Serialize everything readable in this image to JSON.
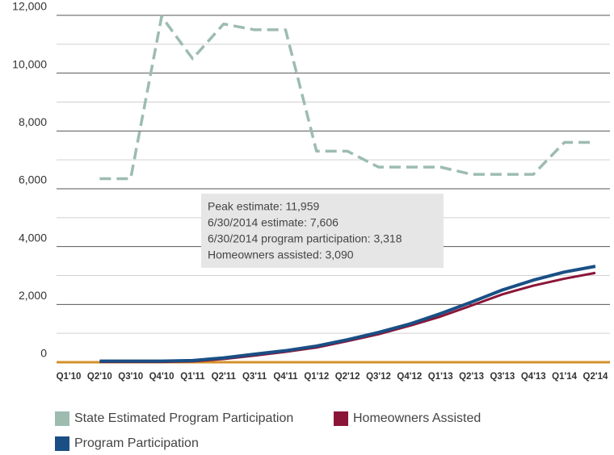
{
  "chart_data": {
    "type": "line",
    "categories": [
      "Q1'10",
      "Q2'10",
      "Q3'10",
      "Q4'10",
      "Q1'11",
      "Q2'11",
      "Q3'11",
      "Q4'11",
      "Q1'12",
      "Q2'12",
      "Q3'12",
      "Q4'12",
      "Q1'13",
      "Q2'13",
      "Q3'13",
      "Q4'13",
      "Q1'14",
      "Q2'14"
    ],
    "series": [
      {
        "name": "State Estimated Program Participation",
        "color": "#9dbcaf",
        "dashed": true,
        "values": [
          null,
          6350,
          6350,
          11959,
          10500,
          11700,
          11500,
          11500,
          7300,
          7300,
          6750,
          6750,
          6750,
          6500,
          6500,
          6500,
          7606,
          7606
        ]
      },
      {
        "name": "Homeowners Assisted",
        "color": "#8b1538",
        "dashed": false,
        "values": [
          null,
          10,
          10,
          10,
          30,
          110,
          230,
          360,
          510,
          730,
          970,
          1260,
          1580,
          1960,
          2350,
          2650,
          2890,
          3090
        ]
      },
      {
        "name": "Program Participation",
        "color": "#1a4f85",
        "dashed": false,
        "values": [
          null,
          40,
          40,
          40,
          60,
          150,
          280,
          400,
          560,
          780,
          1030,
          1320,
          1680,
          2080,
          2500,
          2840,
          3120,
          3318
        ]
      }
    ],
    "ylim": [
      0,
      12000
    ],
    "yticks": [
      {
        "value": 0,
        "label": "0"
      },
      {
        "value": 2000,
        "label": "2,000"
      },
      {
        "value": 4000,
        "label": "4,000"
      },
      {
        "value": 6000,
        "label": "6,000"
      },
      {
        "value": 8000,
        "label": "8,000"
      },
      {
        "value": 10000,
        "label": "10,000"
      },
      {
        "value": 12000,
        "label": "12,000"
      }
    ],
    "minor_yticks": [
      1000,
      3000,
      5000,
      7000,
      9000,
      11000
    ],
    "grid": true,
    "zero_line_color": "#d4902a",
    "annotation": [
      "Peak estimate: 11,959",
      "6/30/2014 estimate: 7,606",
      "6/30/2014 program participation: 3,318",
      "Homeowners assisted: 3,090"
    ]
  }
}
